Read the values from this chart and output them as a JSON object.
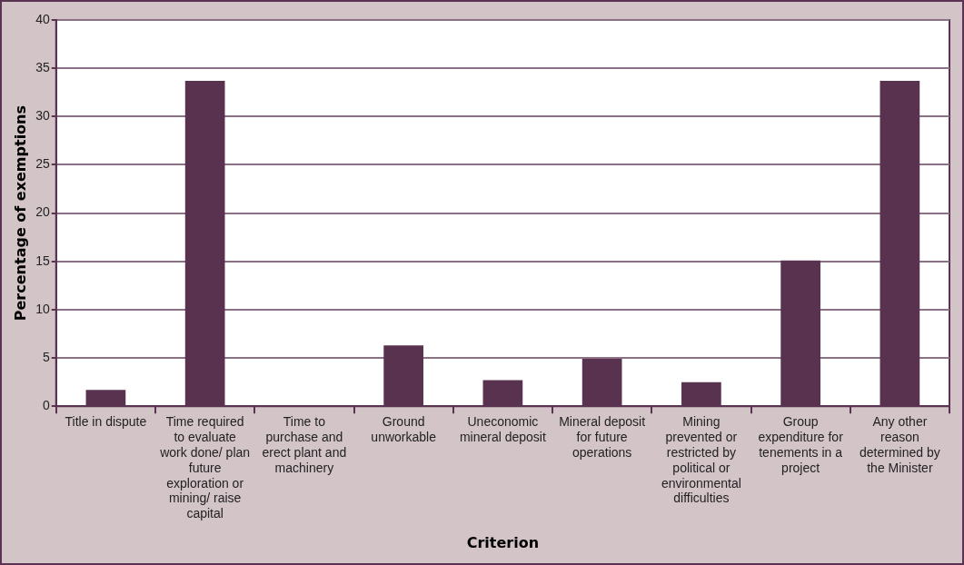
{
  "chart_data": {
    "type": "bar",
    "xlabel": "Criterion",
    "ylabel": "Percentage of exemptions",
    "categories": [
      "Title in dispute",
      "Time required to evaluate work done/ plan future exploration or mining/ raise capital",
      "Time to purchase and erect plant and machinery",
      "Ground unworkable",
      "Uneconomic mineral deposit",
      "Mineral deposit for future operations",
      "Mining prevented or restricted by political or environmental difficulties",
      "Group expenditure for tenements in a project",
      "Any other reason determined by the Minister"
    ],
    "values": [
      1.7,
      33.7,
      0,
      6.3,
      2.7,
      4.9,
      2.5,
      15.1,
      33.7
    ],
    "color": "#58324f",
    "ylim": [
      0,
      40
    ],
    "yticks": [
      0,
      5,
      10,
      15,
      20,
      25,
      30,
      35,
      40
    ],
    "grid": "y"
  }
}
